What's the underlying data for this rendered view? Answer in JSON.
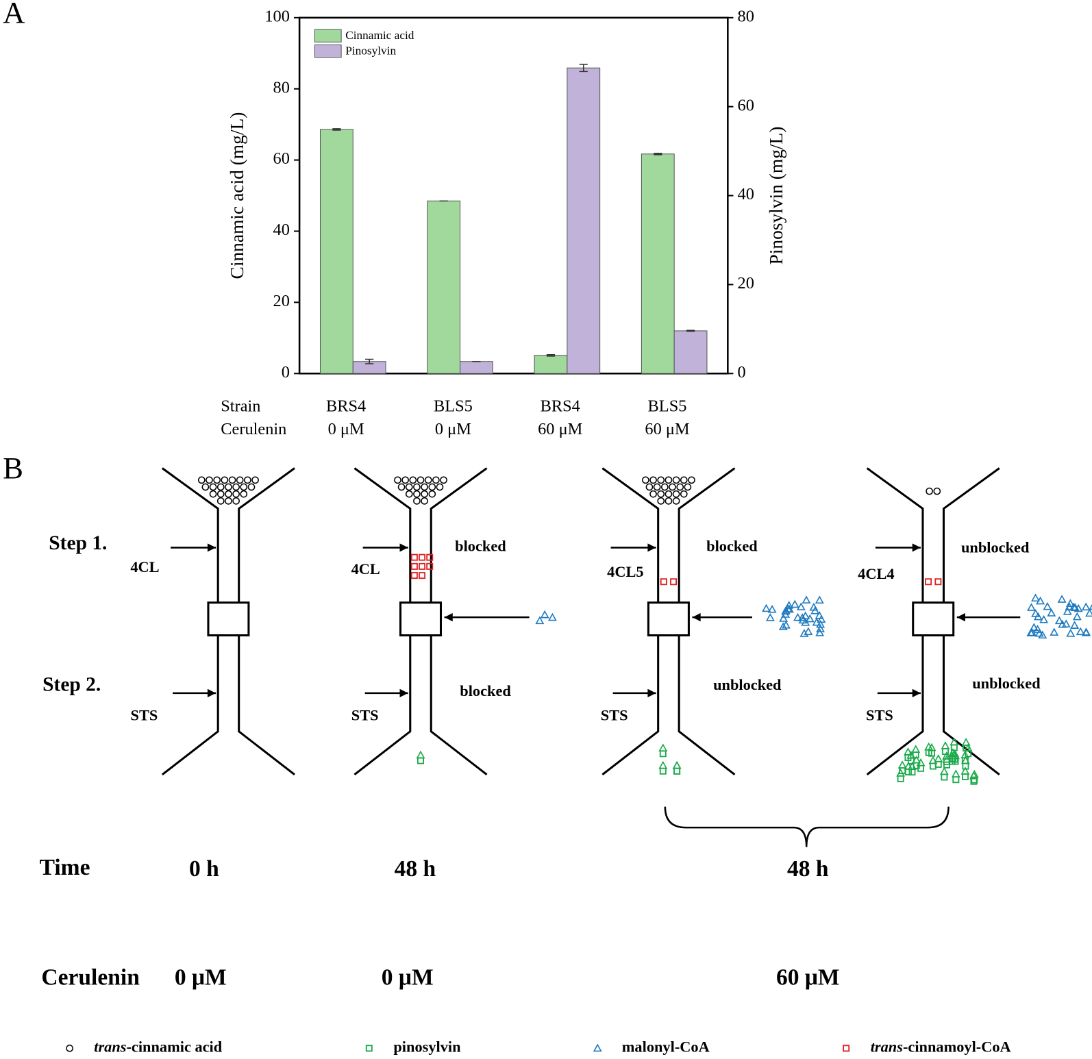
{
  "chart_data": {
    "type": "bar",
    "panel_label": "A",
    "categories": [
      "BRS4",
      "BLS5",
      "BRS4",
      "BLS5"
    ],
    "category_label": "Strain",
    "categories2": [
      "0 μM",
      "0 μM",
      "60 μM",
      "60 μM"
    ],
    "category2_label": "Cerulenin",
    "ylabel": "Cinnamic acid (mg/L)",
    "y2label": "Pinosylvin (mg/L)",
    "ylim": [
      0,
      100
    ],
    "yticks": [
      0,
      20,
      40,
      60,
      80,
      100
    ],
    "y2lim": [
      0,
      80
    ],
    "y2ticks": [
      0,
      20,
      40,
      60,
      80
    ],
    "series": [
      {
        "name": "Cinnamic acid",
        "color": "#a0d99b",
        "values": [
          68.6,
          48.5,
          5.1,
          61.7
        ],
        "errors": [
          0.2,
          0,
          0.2,
          0.2
        ]
      },
      {
        "name": "Pinosylvin",
        "color": "#c1b2d9",
        "axis": "y2",
        "values": [
          2.7,
          2.7,
          68.7,
          9.6
        ],
        "errors": [
          0.5,
          0,
          0.8,
          0.1
        ]
      }
    ]
  },
  "diagram": {
    "panel_label": "B",
    "steps": [
      "Step 1.",
      "Step 2."
    ],
    "columns": [
      {
        "enzyme1": "4CL",
        "enzyme2": "STS"
      },
      {
        "enzyme1": "4CL",
        "enzyme2": "STS",
        "status1": "blocked",
        "status2": "blocked"
      },
      {
        "enzyme1": "4CL5",
        "enzyme2": "STS",
        "status1": "blocked",
        "status2": "unblocked"
      },
      {
        "enzyme1": "4CL4",
        "enzyme2": "STS",
        "status1": "unblocked",
        "status2": "unblocked"
      }
    ],
    "time_label": "Time",
    "times": [
      "0 h",
      "48 h",
      "48 h"
    ],
    "cerulenin_label": "Cerulenin",
    "cerulenin": [
      "0 μM",
      "0 μM",
      "60 μM"
    ],
    "legend": [
      {
        "prefix": "trans",
        "text": "-cinnamic acid"
      },
      {
        "text": "pinosylvin"
      },
      {
        "text": "malonyl-CoA"
      },
      {
        "prefix": "trans",
        "text": "-cinnamoyl-CoA"
      }
    ]
  }
}
